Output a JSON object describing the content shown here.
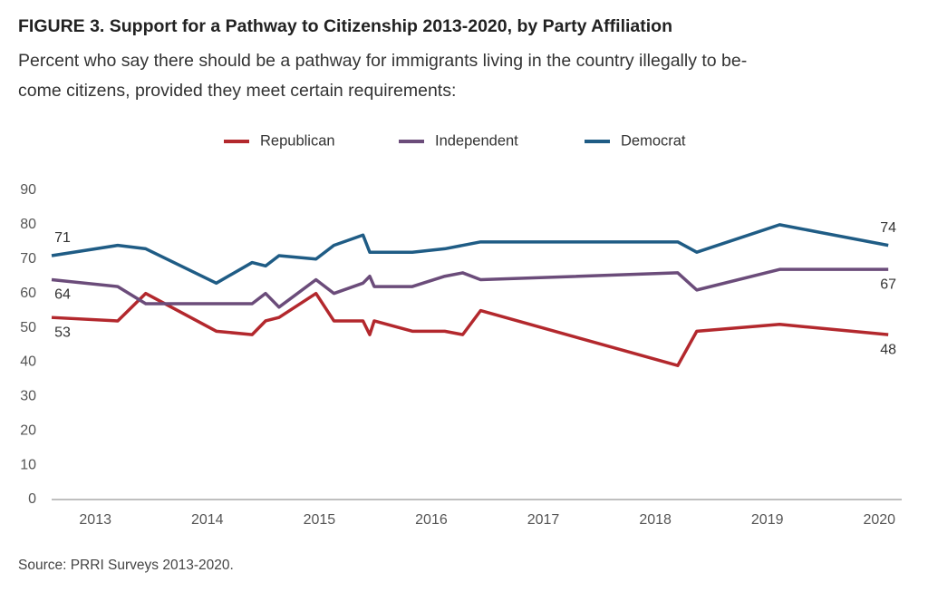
{
  "chart_data": {
    "type": "line",
    "title": "FIGURE 3. Support for a Pathway to Citizenship 2013-2020, by Party Affiliation",
    "subtitle": [
      "Percent who say there should be a pathway for immigrants living in the country illegally to be-",
      "come citizens, provided they meet certain requirements:"
    ],
    "source": "Source: PRRI Surveys 2013-2020.",
    "legend": "top",
    "xlim": [
      2013.11,
      2020.7
    ],
    "xticks": [
      {
        "value": 2013.5,
        "label": "2013"
      },
      {
        "value": 2014.5,
        "label": "2014"
      },
      {
        "value": 2015.5,
        "label": "2015"
      },
      {
        "value": 2016.5,
        "label": "2016"
      },
      {
        "value": 2017.5,
        "label": "2017"
      },
      {
        "value": 2018.5,
        "label": "2018"
      },
      {
        "value": 2019.5,
        "label": "2019"
      },
      {
        "value": 2020.5,
        "label": "2020"
      }
    ],
    "ylim": [
      0,
      90
    ],
    "yticks": [
      0,
      10,
      20,
      30,
      40,
      50,
      60,
      70,
      80,
      90
    ],
    "series": [
      {
        "name": "Republican",
        "color": "#b3282d",
        "x": [
          2013.11,
          2013.7,
          2013.95,
          2014.58,
          2014.9,
          2015.02,
          2015.14,
          2015.47,
          2015.63,
          2015.89,
          2015.95,
          2015.99,
          2016.33,
          2016.62,
          2016.78,
          2016.94,
          2018.7,
          2018.87,
          2019.61,
          2020.58
        ],
        "values": [
          53,
          52,
          60,
          49,
          48,
          52,
          53,
          60,
          52,
          52,
          48,
          52,
          49,
          49,
          48,
          55,
          39,
          49,
          51,
          48
        ]
      },
      {
        "name": "Independent",
        "color": "#6b4c7a",
        "x": [
          2013.11,
          2013.7,
          2013.95,
          2014.58,
          2014.9,
          2015.02,
          2015.14,
          2015.47,
          2015.63,
          2015.89,
          2015.95,
          2015.99,
          2016.33,
          2016.62,
          2016.78,
          2016.94,
          2018.7,
          2018.87,
          2019.61,
          2020.58
        ],
        "values": [
          64,
          62,
          57,
          57,
          57,
          60,
          56,
          64,
          60,
          63,
          65,
          62,
          62,
          65,
          66,
          64,
          66,
          61,
          67,
          67
        ]
      },
      {
        "name": "Democrat",
        "color": "#1f5c85",
        "x": [
          2013.11,
          2013.7,
          2013.95,
          2014.58,
          2014.9,
          2015.02,
          2015.14,
          2015.47,
          2015.63,
          2015.89,
          2015.95,
          2016.33,
          2016.62,
          2016.94,
          2018.7,
          2018.87,
          2019.61,
          2020.58
        ],
        "values": [
          71,
          74,
          73,
          63,
          69,
          68,
          71,
          70,
          74,
          77,
          72,
          72,
          73,
          75,
          75,
          72,
          80,
          74
        ]
      }
    ]
  }
}
